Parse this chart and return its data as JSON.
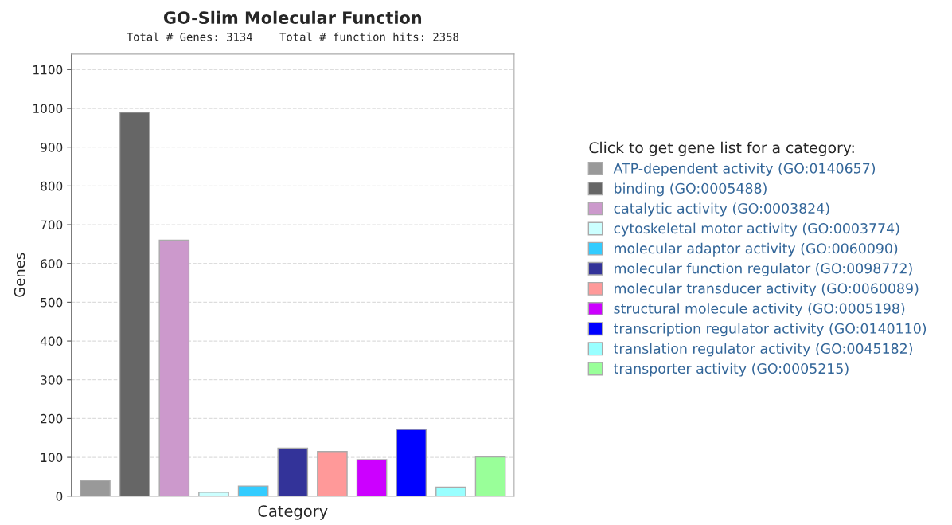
{
  "chart_data": {
    "type": "bar",
    "title": "GO-Slim Molecular Function",
    "subtitle": "Total # Genes: 3134    Total # function hits: 2358",
    "xlabel": "Category",
    "ylabel": "Genes",
    "legend_title": "Click to get gene list for a category:",
    "categories": [
      null,
      null,
      null,
      null,
      null,
      null,
      null,
      null,
      null,
      null,
      null
    ],
    "series": [
      {
        "name": "ATP-dependent activity (GO:0140657)",
        "color": "#999999",
        "values": [
          40,
          null,
          null,
          null,
          null,
          null,
          null,
          null,
          null,
          null,
          null
        ]
      },
      {
        "name": "binding (GO:0005488)",
        "color": "#666666",
        "values": [
          null,
          990,
          null,
          null,
          null,
          null,
          null,
          null,
          null,
          null,
          null
        ]
      },
      {
        "name": "catalytic activity (GO:0003824)",
        "color": "#cc99cc",
        "values": [
          null,
          null,
          660,
          null,
          null,
          null,
          null,
          null,
          null,
          null,
          null
        ]
      },
      {
        "name": "cytoskeletal motor activity (GO:0003774)",
        "color": "#ccffff",
        "values": [
          null,
          null,
          null,
          10,
          null,
          null,
          null,
          null,
          null,
          null,
          null
        ]
      },
      {
        "name": "molecular adaptor activity (GO:0060090)",
        "color": "#33ccff",
        "values": [
          null,
          null,
          null,
          null,
          26,
          null,
          null,
          null,
          null,
          null,
          null
        ]
      },
      {
        "name": "molecular function regulator (GO:0098772)",
        "color": "#333399",
        "values": [
          null,
          null,
          null,
          null,
          null,
          124,
          null,
          null,
          null,
          null,
          null
        ]
      },
      {
        "name": "molecular transducer activity (GO:0060089)",
        "color": "#ff9999",
        "values": [
          null,
          null,
          null,
          null,
          null,
          null,
          115,
          null,
          null,
          null,
          null
        ]
      },
      {
        "name": "structural molecule activity (GO:0005198)",
        "color": "#cc00ff",
        "values": [
          null,
          null,
          null,
          null,
          null,
          null,
          null,
          94,
          null,
          null,
          null
        ]
      },
      {
        "name": "transcription regulator activity (GO:0140110)",
        "color": "#0000ff",
        "values": [
          null,
          null,
          null,
          null,
          null,
          null,
          null,
          null,
          172,
          null,
          null
        ]
      },
      {
        "name": "translation regulator activity (GO:0045182)",
        "color": "#99ffff",
        "values": [
          null,
          null,
          null,
          null,
          null,
          null,
          null,
          null,
          null,
          23,
          null
        ]
      },
      {
        "name": "transporter activity (GO:0005215)",
        "color": "#99ff99",
        "values": [
          null,
          null,
          null,
          null,
          null,
          null,
          null,
          null,
          null,
          null,
          101
        ]
      }
    ],
    "ylim": [
      0,
      1140
    ],
    "yticks": [
      0,
      100,
      200,
      300,
      400,
      500,
      600,
      700,
      800,
      900,
      1000,
      1100
    ],
    "grid": "y",
    "legend": "right",
    "tick_labels": "y"
  }
}
